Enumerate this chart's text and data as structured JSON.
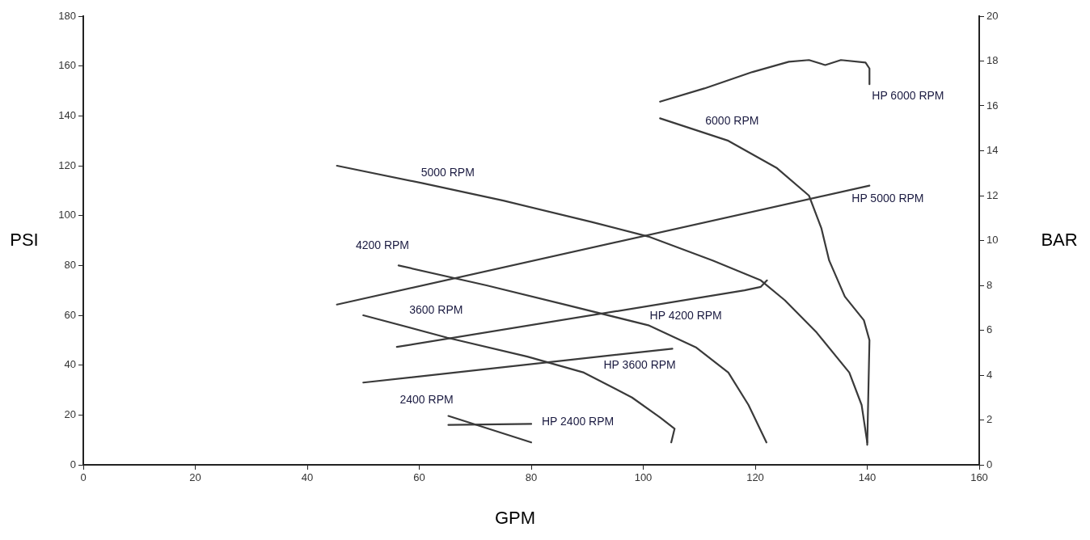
{
  "chart_data": {
    "type": "line",
    "xlabel": "GPM",
    "ylabel": "PSI",
    "y2label": "BAR",
    "xlim": [
      0,
      160
    ],
    "xticks": [
      0,
      20,
      40,
      60,
      80,
      100,
      120,
      140,
      160
    ],
    "ylim": [
      0,
      180
    ],
    "yticks": [
      0,
      20,
      40,
      60,
      80,
      100,
      120,
      140,
      160,
      180
    ],
    "y2lim": [
      0,
      20
    ],
    "y2ticks": [
      0,
      2,
      4,
      6,
      8,
      10,
      12,
      14,
      16,
      18,
      20
    ],
    "grid": false,
    "legend": false,
    "marker": "none",
    "line_style": "solid",
    "series": [
      {
        "name": "HP 6000 RPM",
        "color": "#3a3a3a",
        "x": [
          103,
          110.9,
          119.5,
          126,
          129.6,
          132.5,
          135.3,
          139.7,
          140.4,
          140.4
        ],
        "values": [
          145.7,
          151,
          157.6,
          161.7,
          162.4,
          160.4,
          162.4,
          161.4,
          159,
          152.7
        ]
      },
      {
        "name": "6000 RPM",
        "color": "#3a3a3a",
        "x": [
          103,
          115.2,
          123.9,
          129.6,
          131.8,
          133.2,
          136,
          139.4,
          140.4,
          140
        ],
        "values": [
          139,
          130,
          119,
          108,
          95,
          82,
          67.5,
          58,
          50,
          8
        ]
      },
      {
        "name": "HP 5000 RPM",
        "color": "#3a3a3a",
        "x": [
          45.3,
          140.4
        ],
        "values": [
          64.3,
          112
        ]
      },
      {
        "name": "5000 RPM",
        "color": "#3a3a3a",
        "x": [
          45.3,
          60.6,
          75,
          90.8,
          100.9,
          112.4,
          121,
          125.3,
          131,
          136.8,
          139,
          140
        ],
        "values": [
          120,
          113,
          106,
          97.4,
          91.6,
          82,
          74,
          66,
          53,
          37,
          24,
          9
        ]
      },
      {
        "name": "HP 4200 RPM",
        "color": "#3a3a3a",
        "x": [
          56,
          118.1,
          121,
          122.1
        ],
        "values": [
          47.3,
          70,
          71.4,
          74
        ]
      },
      {
        "name": "4200 RPM",
        "color": "#3a3a3a",
        "x": [
          56.3,
          72,
          86.5,
          100.9,
          109.5,
          115.2,
          118.8,
          122
        ],
        "values": [
          80,
          72,
          64,
          56,
          47,
          37,
          24,
          9
        ]
      },
      {
        "name": "HP 3600 RPM",
        "color": "#3a3a3a",
        "x": [
          50,
          105.2
        ],
        "values": [
          33,
          46.6
        ]
      },
      {
        "name": "3600 RPM",
        "color": "#3a3a3a",
        "x": [
          50,
          65,
          79.3,
          89.4,
          98,
          103,
          105.6,
          105
        ],
        "values": [
          60,
          51,
          43.4,
          37,
          27,
          19,
          14.5,
          9
        ]
      },
      {
        "name": "HP 2400 RPM",
        "color": "#3a3a3a",
        "x": [
          65.2,
          80
        ],
        "values": [
          16,
          16.4
        ]
      },
      {
        "name": "2400 RPM",
        "color": "#3a3a3a",
        "x": [
          65.2,
          80
        ],
        "values": [
          19.6,
          9
        ]
      }
    ]
  }
}
